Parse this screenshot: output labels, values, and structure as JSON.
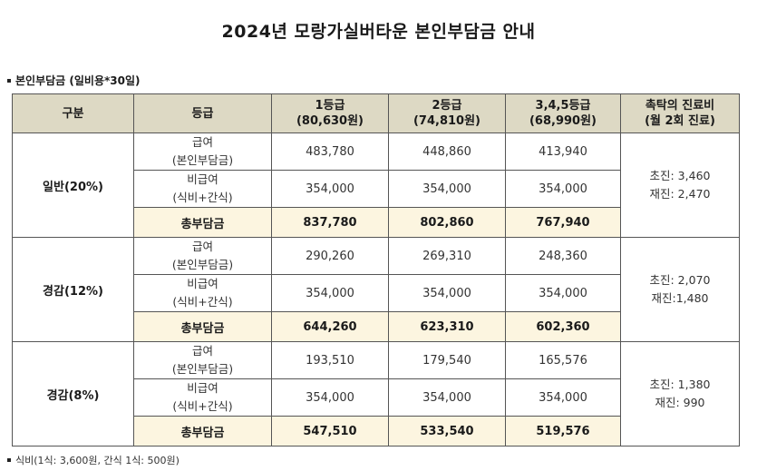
{
  "title": "2024년 모랑가실버타운 본인부담금 안내",
  "section_label": "본인부담금 (일비용*30일)",
  "table": {
    "headers": [
      {
        "lines": [
          "구분"
        ]
      },
      {
        "lines": [
          "등급"
        ]
      },
      {
        "lines": [
          "1등급",
          "(80,630원)"
        ]
      },
      {
        "lines": [
          "2등급",
          "(74,810원)"
        ]
      },
      {
        "lines": [
          "3,4,5등급",
          "(68,990원)"
        ]
      },
      {
        "lines": [
          "촉탁의 진료비",
          "(월 2회 진료)"
        ]
      }
    ],
    "groups": [
      {
        "category": "일반(20%)",
        "rows": [
          {
            "label": [
              "급여",
              "(본인부담금)"
            ],
            "values": [
              "483,780",
              "448,860",
              "413,940"
            ]
          },
          {
            "label": [
              "비급여",
              "(식비+간식)"
            ],
            "values": [
              "354,000",
              "354,000",
              "354,000"
            ]
          }
        ],
        "total": {
          "label": "총부담금",
          "values": [
            "837,780",
            "802,860",
            "767,940"
          ]
        },
        "treatment": [
          "초진: 3,460",
          "재진: 2,470"
        ]
      },
      {
        "category": "경감(12%)",
        "rows": [
          {
            "label": [
              "급여",
              "(본인부담금)"
            ],
            "values": [
              "290,260",
              "269,310",
              "248,360"
            ]
          },
          {
            "label": [
              "비급여",
              "(식비+간식)"
            ],
            "values": [
              "354,000",
              "354,000",
              "354,000"
            ]
          }
        ],
        "total": {
          "label": "총부담금",
          "values": [
            "644,260",
            "623,310",
            "602,360"
          ]
        },
        "treatment": [
          "초진: 2,070",
          "재진:1,480"
        ]
      },
      {
        "category": "경감(8%)",
        "rows": [
          {
            "label": [
              "급여",
              "(본인부담금)"
            ],
            "values": [
              "193,510",
              "179,540",
              "165,576"
            ]
          },
          {
            "label": [
              "비급여",
              "(식비+간식)"
            ],
            "values": [
              "354,000",
              "354,000",
              "354,000"
            ]
          }
        ],
        "total": {
          "label": "총부담금",
          "values": [
            "547,510",
            "533,540",
            "519,576"
          ]
        },
        "treatment": [
          "초진: 1,380",
          "재진: 990"
        ]
      }
    ]
  },
  "footnote": "식비(1식: 3,600원, 간식 1식: 500원)"
}
